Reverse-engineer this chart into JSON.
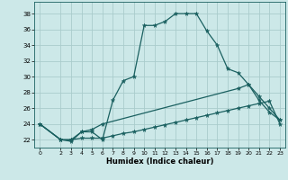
{
  "xlabel": "Humidex (Indice chaleur)",
  "bg_color": "#cce8e8",
  "grid_color": "#aacccc",
  "line_color": "#1a6060",
  "xlim": [
    -0.5,
    23.5
  ],
  "ylim": [
    21.0,
    39.5
  ],
  "xticks": [
    0,
    2,
    3,
    4,
    5,
    6,
    7,
    8,
    9,
    10,
    11,
    12,
    13,
    14,
    15,
    16,
    17,
    18,
    19,
    20,
    21,
    22,
    23
  ],
  "yticks": [
    22,
    24,
    26,
    28,
    30,
    32,
    34,
    36,
    38
  ],
  "line1_x": [
    0,
    2,
    3,
    4,
    5,
    6,
    7,
    8,
    9,
    10,
    11,
    12,
    13,
    14,
    15,
    16,
    17,
    18,
    19,
    20,
    21,
    22,
    23
  ],
  "line1_y": [
    24,
    22,
    21.8,
    23,
    23,
    22,
    27,
    29.5,
    30,
    36.5,
    36.5,
    37,
    38,
    38,
    38,
    35.8,
    34,
    31,
    30.5,
    29,
    27,
    25.5,
    24.5
  ],
  "line2_x": [
    0,
    2,
    3,
    4,
    5,
    6,
    19,
    20,
    21,
    22,
    23
  ],
  "line2_y": [
    24,
    22,
    22,
    23,
    23.3,
    24,
    28.5,
    29,
    27.5,
    26,
    24.5
  ],
  "line3_x": [
    0,
    2,
    3,
    4,
    5,
    6,
    7,
    8,
    9,
    10,
    11,
    12,
    13,
    14,
    15,
    16,
    17,
    18,
    19,
    20,
    21,
    22,
    23
  ],
  "line3_y": [
    24,
    22,
    22,
    22.2,
    22.2,
    22.2,
    22.5,
    22.8,
    23.0,
    23.3,
    23.6,
    23.9,
    24.2,
    24.5,
    24.8,
    25.1,
    25.4,
    25.7,
    26.0,
    26.3,
    26.6,
    26.9,
    24.0
  ]
}
